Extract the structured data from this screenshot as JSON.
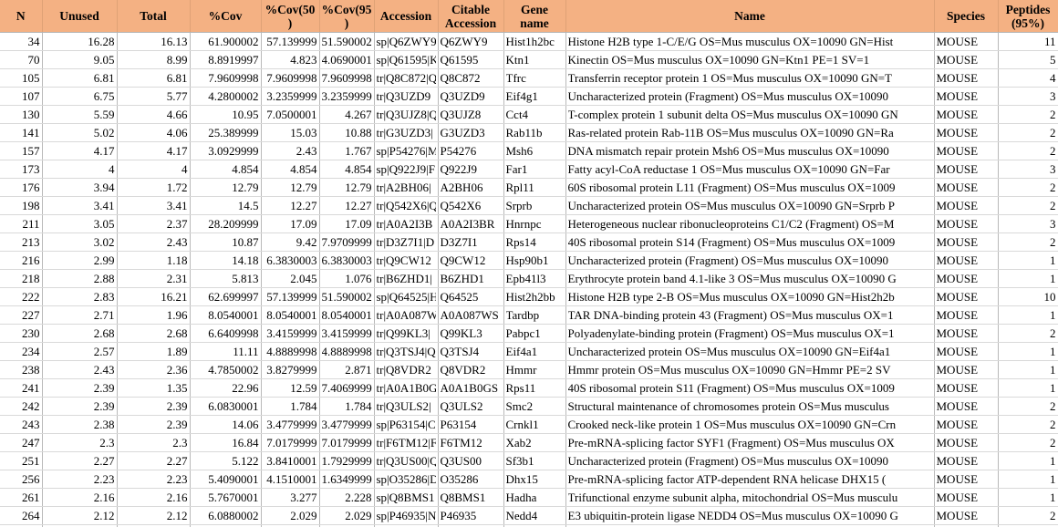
{
  "colors": {
    "header_background": "#F4B183",
    "grid_vertical": "#B9B9B9",
    "grid_horizontal": "#D9D9D9",
    "text": "#000000",
    "cell_background": "#FFFFFF"
  },
  "table": {
    "columns": [
      {
        "key": "n",
        "label": "N"
      },
      {
        "key": "unused",
        "label": "Unused"
      },
      {
        "key": "total",
        "label": "Total"
      },
      {
        "key": "cov",
        "label": "%Cov"
      },
      {
        "key": "cov50",
        "label": "%Cov(50\n)"
      },
      {
        "key": "cov95",
        "label": "%Cov(95\n)"
      },
      {
        "key": "accession",
        "label": "Accession"
      },
      {
        "key": "citable",
        "label": "Citable\nAccession"
      },
      {
        "key": "gene",
        "label": "Gene\nname"
      },
      {
        "key": "name",
        "label": "Name"
      },
      {
        "key": "species",
        "label": "Species"
      },
      {
        "key": "peptides",
        "label": "Peptides\n(95%)"
      }
    ],
    "rows": [
      {
        "n": "34",
        "unused": "16.28",
        "total": "16.13",
        "cov": "61.900002",
        "cov50": "57.139999",
        "cov95": "51.590002",
        "accession": "sp|Q6ZWY9",
        "citable": "Q6ZWY9",
        "gene": "Hist1h2bc",
        "name": "Histone H2B type 1-C/E/G OS=Mus musculus OX=10090 GN=Hist",
        "species": "MOUSE",
        "peptides": "11"
      },
      {
        "n": "70",
        "unused": "9.05",
        "total": "8.99",
        "cov": "8.8919997",
        "cov50": "4.823",
        "cov95": "4.0690001",
        "accession": "sp|Q61595|K",
        "citable": "Q61595",
        "gene": "Ktn1",
        "name": "Kinectin OS=Mus musculus OX=10090 GN=Ktn1 PE=1 SV=1",
        "species": "MOUSE",
        "peptides": "5"
      },
      {
        "n": "105",
        "unused": "6.81",
        "total": "6.81",
        "cov": "7.9609998",
        "cov50": "7.9609998",
        "cov95": "7.9609998",
        "accession": "tr|Q8C872|Q",
        "citable": "Q8C872",
        "gene": "Tfrc",
        "name": "Transferrin receptor protein 1 OS=Mus musculus OX=10090 GN=T",
        "species": "MOUSE",
        "peptides": "4"
      },
      {
        "n": "107",
        "unused": "6.75",
        "total": "5.77",
        "cov": "4.2800002",
        "cov50": "3.2359999",
        "cov95": "3.2359999",
        "accession": "tr|Q3UZD9",
        "citable": "Q3UZD9",
        "gene": "Eif4g1",
        "name": "Uncharacterized protein (Fragment) OS=Mus musculus OX=10090",
        "species": "MOUSE",
        "peptides": "3"
      },
      {
        "n": "130",
        "unused": "5.59",
        "total": "4.66",
        "cov": "10.95",
        "cov50": "7.0500001",
        "cov95": "4.267",
        "accession": "tr|Q3UJZ8|Q",
        "citable": "Q3UJZ8",
        "gene": "Cct4",
        "name": "T-complex protein 1 subunit delta OS=Mus musculus OX=10090 GN",
        "species": "MOUSE",
        "peptides": "2"
      },
      {
        "n": "141",
        "unused": "5.02",
        "total": "4.06",
        "cov": "25.389999",
        "cov50": "15.03",
        "cov95": "10.88",
        "accession": "tr|G3UZD3|",
        "citable": "G3UZD3",
        "gene": "Rab11b",
        "name": "Ras-related protein Rab-11B OS=Mus musculus OX=10090 GN=Ra",
        "species": "MOUSE",
        "peptides": "2"
      },
      {
        "n": "157",
        "unused": "4.17",
        "total": "4.17",
        "cov": "3.0929999",
        "cov50": "2.43",
        "cov95": "1.767",
        "accession": "sp|P54276|M",
        "citable": "P54276",
        "gene": "Msh6",
        "name": "DNA mismatch repair protein Msh6 OS=Mus musculus OX=10090",
        "species": "MOUSE",
        "peptides": "2"
      },
      {
        "n": "173",
        "unused": "4",
        "total": "4",
        "cov": "4.854",
        "cov50": "4.854",
        "cov95": "4.854",
        "accession": "sp|Q922J9|F",
        "citable": "Q922J9",
        "gene": "Far1",
        "name": "Fatty acyl-CoA reductase 1 OS=Mus musculus OX=10090 GN=Far",
        "species": "MOUSE",
        "peptides": "3"
      },
      {
        "n": "176",
        "unused": "3.94",
        "total": "1.72",
        "cov": "12.79",
        "cov50": "12.79",
        "cov95": "12.79",
        "accession": "tr|A2BH06|",
        "citable": "A2BH06",
        "gene": "Rpl11",
        "name": "60S ribosomal protein L11 (Fragment) OS=Mus musculus OX=1009",
        "species": "MOUSE",
        "peptides": "2"
      },
      {
        "n": "198",
        "unused": "3.41",
        "total": "3.41",
        "cov": "14.5",
        "cov50": "12.27",
        "cov95": "12.27",
        "accession": "tr|Q542X6|Q",
        "citable": "Q542X6",
        "gene": "Srprb",
        "name": "Uncharacterized protein OS=Mus musculus OX=10090 GN=Srprb P",
        "species": "MOUSE",
        "peptides": "2"
      },
      {
        "n": "211",
        "unused": "3.05",
        "total": "2.37",
        "cov": "28.209999",
        "cov50": "17.09",
        "cov95": "17.09",
        "accession": "tr|A0A2I3B",
        "citable": "A0A2I3BR",
        "gene": "Hnrnpc",
        "name": "Heterogeneous nuclear ribonucleoproteins C1/C2 (Fragment) OS=M",
        "species": "MOUSE",
        "peptides": "3"
      },
      {
        "n": "213",
        "unused": "3.02",
        "total": "2.43",
        "cov": "10.87",
        "cov50": "9.42",
        "cov95": "7.9709999",
        "accession": "tr|D3Z7I1|D",
        "citable": "D3Z7I1",
        "gene": "Rps14",
        "name": "40S ribosomal protein S14 (Fragment) OS=Mus musculus OX=1009",
        "species": "MOUSE",
        "peptides": "2"
      },
      {
        "n": "216",
        "unused": "2.99",
        "total": "1.18",
        "cov": "14.18",
        "cov50": "6.3830003",
        "cov95": "6.3830003",
        "accession": "tr|Q9CW12",
        "citable": "Q9CW12",
        "gene": "Hsp90b1",
        "name": "Uncharacterized protein (Fragment) OS=Mus musculus OX=10090",
        "species": "MOUSE",
        "peptides": "1"
      },
      {
        "n": "218",
        "unused": "2.88",
        "total": "2.31",
        "cov": "5.813",
        "cov50": "2.045",
        "cov95": "1.076",
        "accession": "tr|B6ZHD1|",
        "citable": "B6ZHD1",
        "gene": "Epb41l3",
        "name": "Erythrocyte protein band 4.1-like 3 OS=Mus musculus OX=10090 G",
        "species": "MOUSE",
        "peptides": "1"
      },
      {
        "n": "222",
        "unused": "2.83",
        "total": "16.21",
        "cov": "62.699997",
        "cov50": "57.139999",
        "cov95": "51.590002",
        "accession": "sp|Q64525|H",
        "citable": "Q64525",
        "gene": "Hist2h2bb",
        "name": "Histone H2B type 2-B OS=Mus musculus OX=10090 GN=Hist2h2b",
        "species": "MOUSE",
        "peptides": "10"
      },
      {
        "n": "227",
        "unused": "2.71",
        "total": "1.96",
        "cov": "8.0540001",
        "cov50": "8.0540001",
        "cov95": "8.0540001",
        "accession": "tr|A0A087W",
        "citable": "A0A087WS",
        "gene": "Tardbp",
        "name": "TAR DNA-binding protein 43 (Fragment) OS=Mus musculus OX=1",
        "species": "MOUSE",
        "peptides": "1"
      },
      {
        "n": "230",
        "unused": "2.68",
        "total": "2.68",
        "cov": "6.6409998",
        "cov50": "3.4159999",
        "cov95": "3.4159999",
        "accession": "tr|Q99KL3|",
        "citable": "Q99KL3",
        "gene": "Pabpc1",
        "name": "Polyadenylate-binding protein (Fragment) OS=Mus musculus OX=1",
        "species": "MOUSE",
        "peptides": "2"
      },
      {
        "n": "234",
        "unused": "2.57",
        "total": "1.89",
        "cov": "11.11",
        "cov50": "4.8889998",
        "cov95": "4.8889998",
        "accession": "tr|Q3TSJ4|Q",
        "citable": "Q3TSJ4",
        "gene": "Eif4a1",
        "name": "Uncharacterized protein OS=Mus musculus OX=10090 GN=Eif4a1",
        "species": "MOUSE",
        "peptides": "1"
      },
      {
        "n": "238",
        "unused": "2.43",
        "total": "2.36",
        "cov": "4.7850002",
        "cov50": "3.8279999",
        "cov95": "2.871",
        "accession": "tr|Q8VDR2",
        "citable": "Q8VDR2",
        "gene": "Hmmr",
        "name": "Hmmr protein OS=Mus musculus OX=10090 GN=Hmmr PE=2 SV",
        "species": "MOUSE",
        "peptides": "1"
      },
      {
        "n": "241",
        "unused": "2.39",
        "total": "1.35",
        "cov": "22.96",
        "cov50": "12.59",
        "cov95": "7.4069999",
        "accession": "tr|A0A1B0G",
        "citable": "A0A1B0GS",
        "gene": "Rps11",
        "name": "40S ribosomal protein S11 (Fragment) OS=Mus musculus OX=1009",
        "species": "MOUSE",
        "peptides": "1"
      },
      {
        "n": "242",
        "unused": "2.39",
        "total": "2.39",
        "cov": "6.0830001",
        "cov50": "1.784",
        "cov95": "1.784",
        "accession": "tr|Q3ULS2|",
        "citable": "Q3ULS2",
        "gene": "Smc2",
        "name": "Structural maintenance of chromosomes protein OS=Mus musculus",
        "species": "MOUSE",
        "peptides": "2"
      },
      {
        "n": "243",
        "unused": "2.38",
        "total": "2.39",
        "cov": "14.06",
        "cov50": "3.4779999",
        "cov95": "3.4779999",
        "accession": "sp|P63154|C",
        "citable": "P63154",
        "gene": "Crnkl1",
        "name": "Crooked neck-like protein 1 OS=Mus musculus OX=10090 GN=Crn",
        "species": "MOUSE",
        "peptides": "2"
      },
      {
        "n": "247",
        "unused": "2.3",
        "total": "2.3",
        "cov": "16.84",
        "cov50": "7.0179999",
        "cov95": "7.0179999",
        "accession": "tr|F6TM12|F",
        "citable": "F6TM12",
        "gene": "Xab2",
        "name": "Pre-mRNA-splicing factor SYF1 (Fragment) OS=Mus musculus OX",
        "species": "MOUSE",
        "peptides": "2"
      },
      {
        "n": "251",
        "unused": "2.27",
        "total": "2.27",
        "cov": "5.122",
        "cov50": "3.8410001",
        "cov95": "1.7929999",
        "accession": "tr|Q3US00|Q",
        "citable": "Q3US00",
        "gene": "Sf3b1",
        "name": "Uncharacterized protein (Fragment) OS=Mus musculus OX=10090",
        "species": "MOUSE",
        "peptides": "1"
      },
      {
        "n": "256",
        "unused": "2.23",
        "total": "2.23",
        "cov": "5.4090001",
        "cov50": "4.1510001",
        "cov95": "1.6349999",
        "accession": "sp|O35286|D",
        "citable": "O35286",
        "gene": "Dhx15",
        "name": "Pre-mRNA-splicing factor ATP-dependent RNA helicase DHX15 (",
        "species": "MOUSE",
        "peptides": "1"
      },
      {
        "n": "261",
        "unused": "2.16",
        "total": "2.16",
        "cov": "5.7670001",
        "cov50": "3.277",
        "cov95": "2.228",
        "accession": "sp|Q8BMS1",
        "citable": "Q8BMS1",
        "gene": "Hadha",
        "name": "Trifunctional enzyme subunit alpha, mitochondrial OS=Mus musculu",
        "species": "MOUSE",
        "peptides": "1"
      },
      {
        "n": "264",
        "unused": "2.12",
        "total": "2.12",
        "cov": "6.0880002",
        "cov50": "2.029",
        "cov95": "2.029",
        "accession": "sp|P46935|N",
        "citable": "P46935",
        "gene": "Nedd4",
        "name": "E3 ubiquitin-protein ligase NEDD4 OS=Mus musculus OX=10090 G",
        "species": "MOUSE",
        "peptides": "2"
      }
    ]
  }
}
